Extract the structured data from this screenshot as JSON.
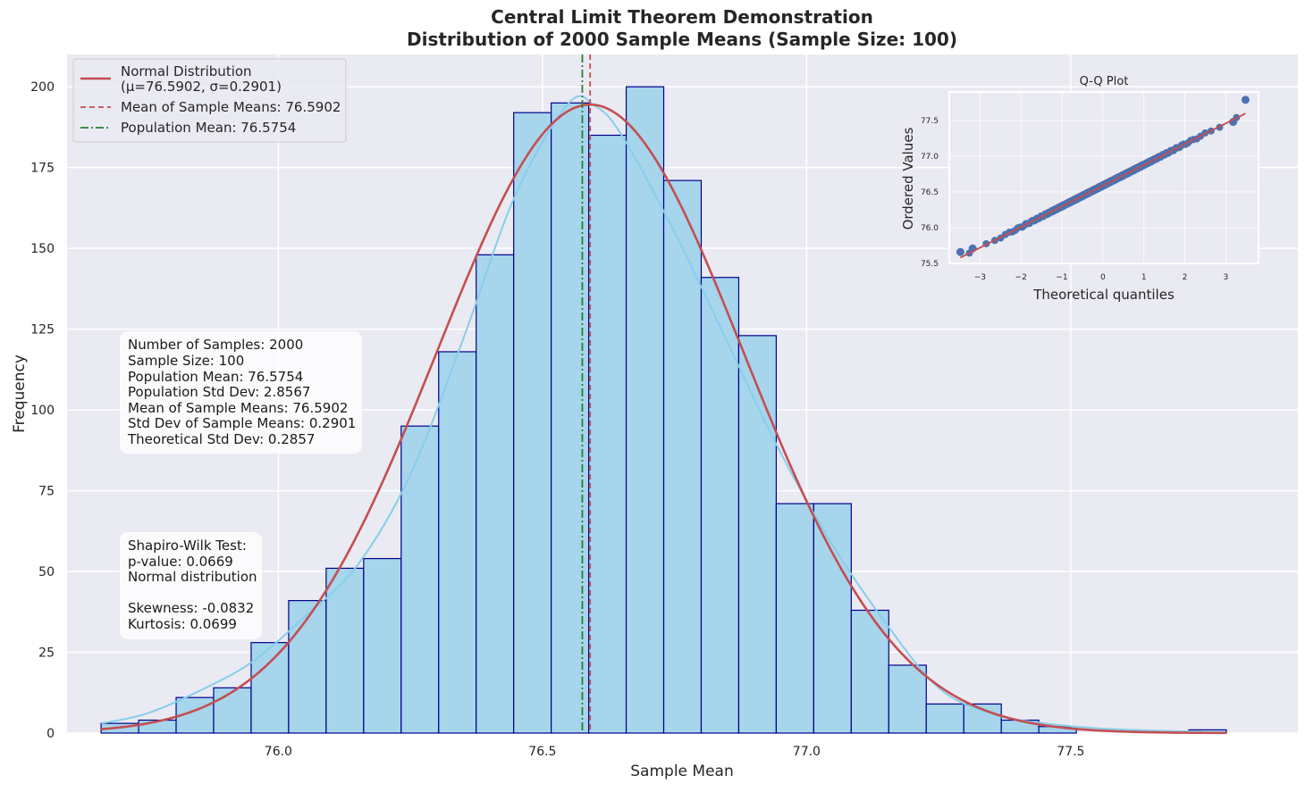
{
  "chart_data": [
    {
      "type": "bar",
      "title": "Central Limit Theorem Demonstration",
      "subtitle": "Distribution of 2000 Sample Means (Sample Size: 100)",
      "xlabel": "Sample Mean",
      "ylabel": "Frequency",
      "xlim": [
        75.6,
        77.93
      ],
      "ylim": [
        0,
        210
      ],
      "xticks": [
        76.0,
        76.5,
        77.0,
        77.5
      ],
      "xtick_labels": [
        "76.0",
        "76.5",
        "77.0",
        "77.5"
      ],
      "yticks": [
        0,
        25,
        50,
        75,
        100,
        125,
        150,
        175,
        200
      ],
      "ytick_labels": [
        "0",
        "25",
        "50",
        "75",
        "100",
        "125",
        "150",
        "175",
        "200"
      ],
      "grid": true,
      "bins": {
        "edges": [
          75.6645,
          75.7355,
          75.8065,
          75.8775,
          75.9485,
          76.0195,
          76.0905,
          76.1615,
          76.2325,
          76.3035,
          76.3745,
          76.4455,
          76.5165,
          76.5875,
          76.6585,
          76.7295,
          76.8005,
          76.8715,
          76.9425,
          77.0135,
          77.0845,
          77.1555,
          77.2265,
          77.2975,
          77.3685,
          77.4395,
          77.5105,
          77.5815,
          77.6525,
          77.7235,
          77.7945
        ],
        "counts": [
          3,
          4,
          11,
          14,
          28,
          41,
          51,
          54,
          95,
          118,
          148,
          192,
          195,
          185,
          200,
          171,
          141,
          123,
          71,
          71,
          38,
          21,
          9,
          9,
          4,
          2,
          0,
          0,
          0,
          1
        ]
      },
      "lines": [
        {
          "name": "Normal Distribution\n(μ=76.5902, σ=0.2901)",
          "kind": "normal-pdf",
          "mu": 76.5902,
          "sigma": 0.2901,
          "peak": 194.5,
          "color": "#c44e52"
        },
        {
          "name": "KDE",
          "kind": "kde",
          "color": "#87ceeb",
          "x": [
            75.665,
            75.75,
            75.85,
            75.95,
            76.05,
            76.15,
            76.25,
            76.35,
            76.45,
            76.55,
            76.6,
            76.65,
            76.75,
            76.85,
            76.95,
            77.05,
            77.15,
            77.25,
            77.35,
            77.45,
            77.55,
            77.65,
            77.75
          ],
          "y": [
            3,
            6,
            13,
            22,
            36,
            52,
            80,
            122,
            167,
            195,
            194,
            185,
            155,
            121,
            87,
            58,
            34,
            14,
            6,
            3,
            1.5,
            0.8,
            0.4
          ]
        }
      ],
      "vlines": [
        {
          "name": "Mean of Sample Means: 76.5902",
          "x": 76.5902,
          "color": "#c44e52",
          "style": "dashed"
        },
        {
          "name": "Population Mean: 76.5754",
          "x": 76.5754,
          "color": "#2e7d32",
          "style": "dashdot"
        }
      ],
      "legend_position": "top-left",
      "legend": [
        {
          "label_line1": "Normal Distribution",
          "label_line2": "(μ=76.5902, σ=0.2901)",
          "style": "solid",
          "color": "#c44e52"
        },
        {
          "label_line1": "Mean of Sample Means: 76.5902",
          "label_line2": "",
          "style": "dashed",
          "color": "#c44e52"
        },
        {
          "label_line1": "Population Mean: 76.5754",
          "label_line2": "",
          "style": "dashdot",
          "color": "#2e7d32"
        }
      ],
      "annotations": {
        "stats": [
          "Number of Samples: 2000",
          "Sample Size: 100",
          "Population Mean: 76.5754",
          "Population Std Dev: 2.8567",
          "Mean of Sample Means: 76.5902",
          "Std Dev of Sample Means: 0.2901",
          "Theoretical Std Dev: 0.2857"
        ],
        "test": [
          "Shapiro-Wilk Test:",
          "p-value: 0.0669",
          "Normal distribution",
          "",
          "Skewness: -0.0832",
          "Kurtosis: 0.0699"
        ]
      },
      "colors": {
        "bar_fill": "#a6d5ec",
        "bar_edge": "#00008b",
        "background": "#eaeaf2"
      }
    },
    {
      "type": "scatter",
      "title": "Q-Q Plot",
      "xlabel": "Theoretical quantiles",
      "ylabel": "Ordered Values",
      "xlim": [
        -3.75,
        3.8
      ],
      "ylim": [
        75.5,
        77.9
      ],
      "xticks": [
        -3,
        -2,
        -1,
        0,
        1,
        2,
        3
      ],
      "xtick_labels": [
        "−3",
        "−2",
        "−1",
        "0",
        "1",
        "2",
        "3"
      ],
      "yticks": [
        75.5,
        76.0,
        76.5,
        77.0,
        77.5
      ],
      "ytick_labels": [
        "75.5",
        "76.0",
        "76.5",
        "77.0",
        "77.5"
      ],
      "fit_line": {
        "slope": 0.2901,
        "intercept": 76.5902,
        "x_range": [
          -3.48,
          3.48
        ],
        "color": "#c44e52"
      },
      "extreme_points": [
        {
          "x": -3.48,
          "y": 75.66
        },
        {
          "x": -3.18,
          "y": 75.71
        },
        {
          "x": 3.18,
          "y": 77.48
        },
        {
          "x": 3.48,
          "y": 77.79
        }
      ],
      "sample_count": 2000,
      "colors": {
        "points": "#4c72b0",
        "background": "#eaeaf2"
      }
    }
  ]
}
